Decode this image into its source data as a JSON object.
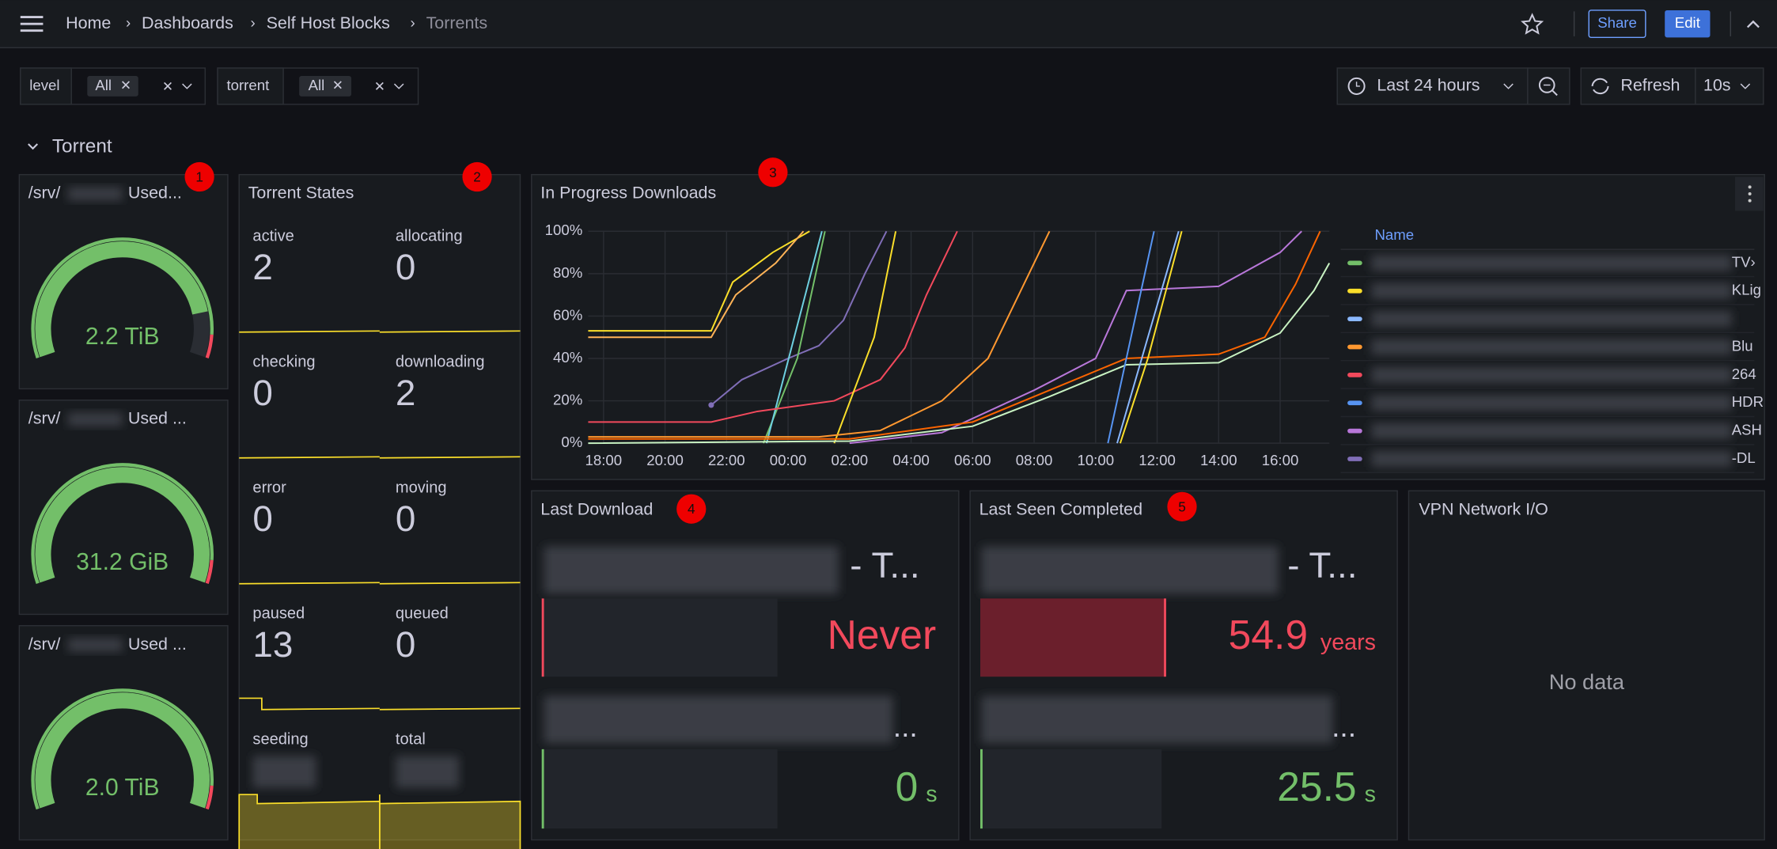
{
  "header": {
    "breadcrumbs": [
      "Home",
      "Dashboards",
      "Self Host Blocks",
      "Torrents"
    ],
    "share": "Share",
    "edit": "Edit"
  },
  "variables": [
    {
      "name": "level",
      "value": "All"
    },
    {
      "name": "torrent",
      "value": "All"
    }
  ],
  "time_picker": {
    "range": "Last 24 hours",
    "refresh": "Refresh",
    "interval": "10s"
  },
  "row_title": "Torrent",
  "gauges": [
    {
      "title_prefix": "/srv/",
      "title_suffix": "Used...",
      "value": "2.2 TiB",
      "fill": 0.86
    },
    {
      "title_prefix": "/srv/",
      "title_suffix": "Used ...",
      "value": "31.2 GiB",
      "fill": 1
    },
    {
      "title_prefix": "/srv/",
      "title_suffix": "Used ...",
      "value": "2.0 TiB",
      "fill": 1
    }
  ],
  "torrent_states": {
    "title": "Torrent States",
    "stats": [
      {
        "label": "active",
        "value": 2
      },
      {
        "label": "allocating",
        "value": 0
      },
      {
        "label": "checking",
        "value": 0
      },
      {
        "label": "downloading",
        "value": 2
      },
      {
        "label": "error",
        "value": 0
      },
      {
        "label": "moving",
        "value": 0
      },
      {
        "label": "paused",
        "value": 13
      },
      {
        "label": "queued",
        "value": 0
      },
      {
        "label": "seeding"
      },
      {
        "label": "total"
      }
    ]
  },
  "chart_data": {
    "type": "line",
    "title": "In Progress Downloads",
    "xlim": [
      17.5,
      41.6
    ],
    "ylim": [
      0,
      100
    ],
    "xticks": [
      {
        "value": 18,
        "label": "18:00"
      },
      {
        "value": 20,
        "label": "20:00"
      },
      {
        "value": 22,
        "label": "22:00"
      },
      {
        "value": 24,
        "label": "00:00"
      },
      {
        "value": 26,
        "label": "02:00"
      },
      {
        "value": 28,
        "label": "04:00"
      },
      {
        "value": 30,
        "label": "06:00"
      },
      {
        "value": 32,
        "label": "08:00"
      },
      {
        "value": 34,
        "label": "10:00"
      },
      {
        "value": 36,
        "label": "12:00"
      },
      {
        "value": 38,
        "label": "14:00"
      },
      {
        "value": 40,
        "label": "16:00"
      }
    ],
    "yticks": [
      {
        "value": 0,
        "label": "0%"
      },
      {
        "value": 20,
        "label": "20%"
      },
      {
        "value": 40,
        "label": "40%"
      },
      {
        "value": 60,
        "label": "60%"
      },
      {
        "value": 80,
        "label": "80%"
      },
      {
        "value": 100,
        "label": "100%"
      }
    ],
    "grid": true,
    "series": [
      {
        "color": "#fade2a",
        "x": [
          17.5,
          21.5,
          22.2,
          23.5,
          24.7
        ],
        "values": [
          53,
          53,
          76,
          90,
          100
        ]
      },
      {
        "color": "#ffb357",
        "x": [
          17.5,
          21.5,
          22.3,
          23.6,
          24.5
        ],
        "values": [
          50,
          50,
          70,
          85,
          100
        ]
      },
      {
        "color": "#806eb7",
        "x": [
          21.5,
          22.5,
          24,
          25,
          25.8,
          26.5,
          27.2
        ],
        "values": [
          18,
          30,
          40,
          46,
          58,
          80,
          100
        ]
      },
      {
        "color": "#73bf69",
        "x": [
          23.2,
          24.3,
          25.2
        ],
        "values": [
          0,
          40,
          100
        ]
      },
      {
        "color": "#6ed0e0",
        "x": [
          23.3,
          25.1
        ],
        "values": [
          0,
          100
        ]
      },
      {
        "color": "#f2495c",
        "x": [
          17.5,
          21.5,
          23,
          25.5,
          27,
          27.8,
          28.5,
          29.5
        ],
        "values": [
          10,
          10,
          15,
          20,
          30,
          45,
          70,
          100
        ]
      },
      {
        "color": "#fade2a",
        "x": [
          25.5,
          26.8,
          27.5
        ],
        "values": [
          0,
          50,
          100
        ]
      },
      {
        "color": "#ff9830",
        "x": [
          17.5,
          25,
          27,
          29,
          30.5,
          31.5,
          32.5
        ],
        "values": [
          3,
          3,
          6,
          20,
          40,
          70,
          100
        ]
      },
      {
        "color": "#b877d9",
        "x": [
          26,
          29,
          32,
          34,
          35,
          38,
          40,
          40.7
        ],
        "values": [
          0,
          5,
          25,
          40,
          72,
          74,
          90,
          100
        ]
      },
      {
        "color": "#fa6400",
        "x": [
          17.5,
          26,
          30,
          32.5,
          35,
          38,
          39.5,
          40.5,
          41.3
        ],
        "values": [
          2,
          2,
          10,
          25,
          40,
          42,
          50,
          75,
          100
        ]
      },
      {
        "color": "#c8f2c2",
        "x": [
          17.5,
          26,
          30,
          32.5,
          35,
          38,
          40,
          41.1,
          41.6
        ],
        "values": [
          0,
          1,
          8,
          22,
          37,
          38,
          52,
          72,
          85
        ]
      },
      {
        "color": "#5794f2",
        "x": [
          34.4,
          35.9
        ],
        "values": [
          0,
          100
        ]
      },
      {
        "color": "#8ab8ff",
        "x": [
          34.7,
          36.7
        ],
        "values": [
          0,
          100
        ]
      },
      {
        "color": "#fade2a",
        "x": [
          34.8,
          35.7,
          36.8
        ],
        "values": [
          0,
          40,
          100
        ]
      }
    ],
    "legend": {
      "header": "Name",
      "entries": [
        {
          "color": "#73bf69",
          "label": "TV›"
        },
        {
          "color": "#fade2a",
          "label": "KLig"
        },
        {
          "color": "#8ab8ff"
        },
        {
          "color": "#ff9830",
          "label": "Blu"
        },
        {
          "color": "#f2495c",
          "label": "264"
        },
        {
          "color": "#5794f2",
          "label": "HDR"
        },
        {
          "color": "#b877d9",
          "label": "ASH"
        },
        {
          "color": "#806eb7",
          "label": "-DL"
        }
      ]
    }
  },
  "last_download": {
    "title": "Last Download",
    "items": [
      {
        "title_suffix": "- T...",
        "value": "Never"
      },
      {
        "title_suffix": "...",
        "value": 0,
        "unit": "s"
      }
    ]
  },
  "last_seen": {
    "title": "Last Seen Completed",
    "items": [
      {
        "title_suffix": "- T...",
        "value": 54.9,
        "unit": "years"
      },
      {
        "title_suffix": "...",
        "value": 25.5,
        "unit": "s"
      }
    ]
  },
  "vpn": {
    "title": "VPN Network I/O",
    "message": "No data"
  },
  "annotations": [
    1,
    2,
    3,
    4,
    5
  ]
}
